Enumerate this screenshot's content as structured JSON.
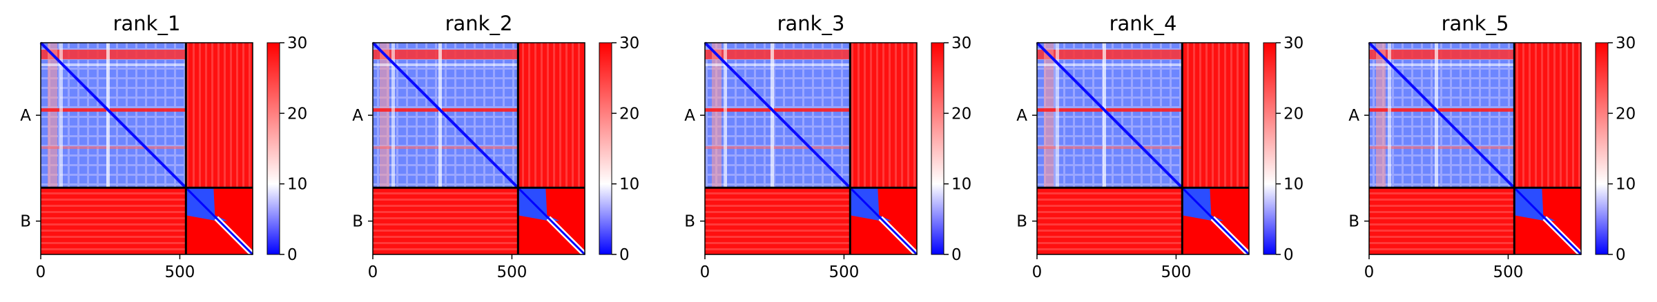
{
  "chart_data": {
    "type": "heatmap",
    "panels": [
      {
        "title": "rank_1"
      },
      {
        "title": "rank_2"
      },
      {
        "title": "rank_3"
      },
      {
        "title": "rank_4"
      },
      {
        "title": "rank_5"
      }
    ],
    "x_ticks": [
      "0",
      "500"
    ],
    "x_tick_values": [
      0,
      500
    ],
    "xlim": [
      0,
      762
    ],
    "ylim": [
      0,
      762
    ],
    "chain_labels": [
      "A",
      "B"
    ],
    "chain_lengths": [
      522,
      240
    ],
    "colorbar": {
      "ticks": [
        "0",
        "10",
        "20",
        "30"
      ],
      "tick_values": [
        0,
        10,
        20,
        30
      ],
      "range": [
        0,
        30
      ],
      "colors": [
        "#0000ff",
        "#ffffff",
        "#ff0000"
      ]
    },
    "chain_boundary_color": "#000000"
  }
}
